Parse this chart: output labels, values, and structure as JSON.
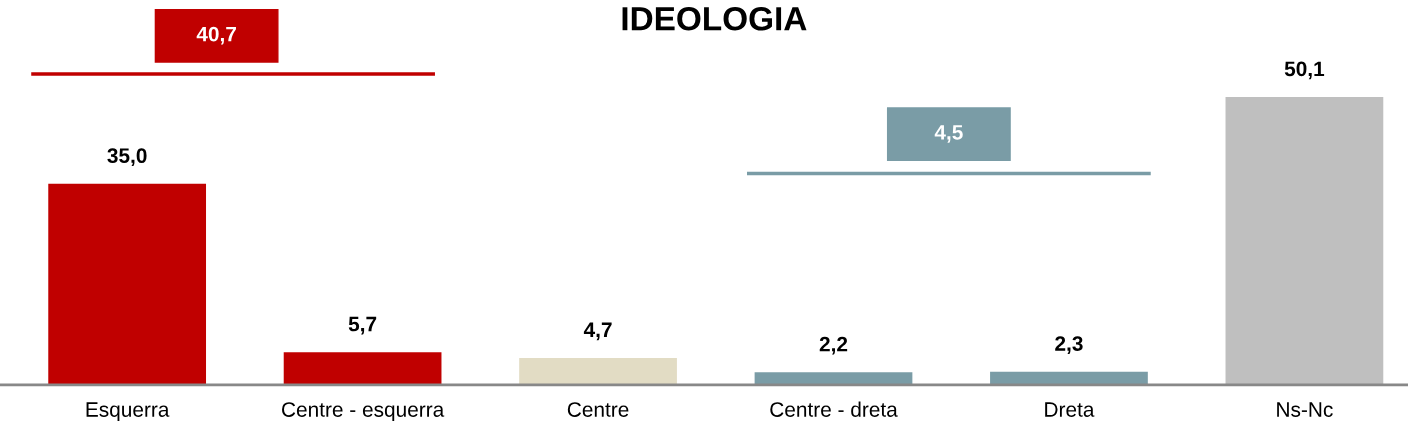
{
  "chart_data": {
    "type": "bar",
    "title": "IDEOLOGIA",
    "categories": [
      "Esquerra",
      "Centre - esquerra",
      "Centre",
      "Centre - dreta",
      "Dreta",
      "Ns-Nc"
    ],
    "values": [
      35.0,
      5.7,
      4.7,
      2.2,
      2.3,
      50.1
    ],
    "value_labels": [
      "35,0",
      "5,7",
      "4,7",
      "2,2",
      "2,3",
      "50,1"
    ],
    "colors": [
      "#c00000",
      "#c00000",
      "#e2dcc4",
      "#7a9ca6",
      "#7a9ca6",
      "#bfbfbf"
    ],
    "tick_labels": "x",
    "grid": false,
    "legend": false,
    "annotations": [
      "40,7",
      "4,5"
    ]
  }
}
